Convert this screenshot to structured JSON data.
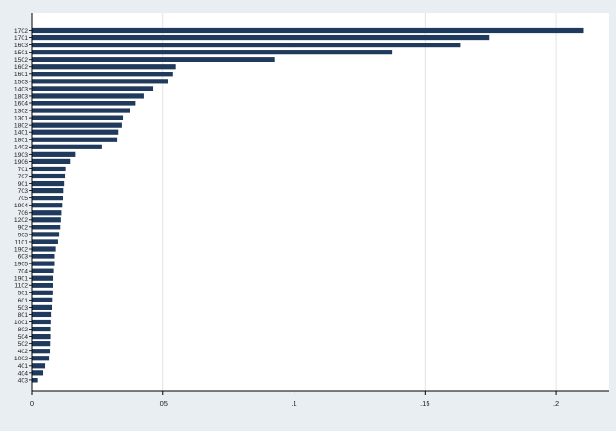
{
  "colors": {
    "background": "#e8eef2",
    "plot_background": "#ffffff",
    "bar": "#1f3a5c",
    "gridline": "#e3e3e3",
    "axis": "#000000"
  },
  "chart_data": {
    "type": "bar",
    "orientation": "horizontal",
    "title": "",
    "xlabel": "",
    "ylabel": "",
    "xlim": [
      0,
      0.22
    ],
    "x_ticks": [
      0,
      0.05,
      0.1,
      0.15,
      0.2
    ],
    "x_tick_labels": [
      "0",
      ".05",
      ".1",
      ".15",
      ".2"
    ],
    "grid": "vertical",
    "legend": "none",
    "categories": [
      "1702",
      "1701",
      "1603",
      "1501",
      "1502",
      "1602",
      "1601",
      "1503",
      "1403",
      "1803",
      "1604",
      "1302",
      "1301",
      "1802",
      "1401",
      "1801",
      "1402",
      "1903",
      "1906",
      "701",
      "707",
      "901",
      "703",
      "705",
      "1904",
      "706",
      "1202",
      "902",
      "903",
      "1101",
      "1902",
      "603",
      "1905",
      "704",
      "1901",
      "1102",
      "501",
      "601",
      "503",
      "801",
      "1001",
      "802",
      "504",
      "502",
      "402",
      "1002",
      "401",
      "404",
      "403"
    ],
    "values": [
      0.2105,
      0.1745,
      0.1635,
      0.1375,
      0.0928,
      0.0548,
      0.0538,
      0.0518,
      0.0463,
      0.0428,
      0.0395,
      0.0373,
      0.0349,
      0.0345,
      0.0329,
      0.0325,
      0.0269,
      0.0167,
      0.0146,
      0.013,
      0.0128,
      0.0125,
      0.0122,
      0.012,
      0.0115,
      0.0112,
      0.011,
      0.0108,
      0.0104,
      0.01,
      0.0092,
      0.0088,
      0.0088,
      0.0085,
      0.0083,
      0.0082,
      0.0079,
      0.0077,
      0.0076,
      0.0073,
      0.0072,
      0.0071,
      0.0071,
      0.007,
      0.0069,
      0.0066,
      0.0052,
      0.0045,
      0.0023
    ]
  }
}
